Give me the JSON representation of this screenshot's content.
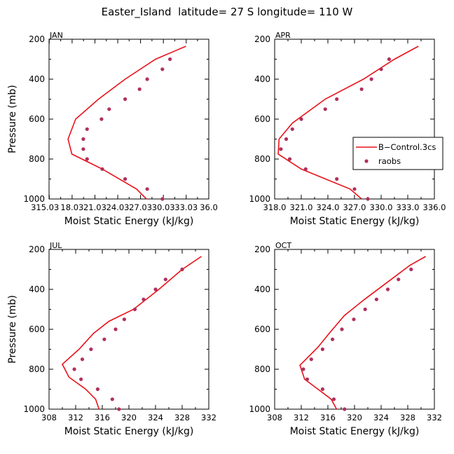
{
  "figure": {
    "title": "Easter_Island  latitude= 27 S longitude= 110 W"
  },
  "legend": {
    "model_label": "B−Control.3cs",
    "obs_label": "raobs",
    "line_color": "#e8121a",
    "dot_color": "#b03060"
  },
  "chart_data": [
    {
      "type": "line",
      "month": "JAN",
      "xlabel": "Moist Static Energy (kJ/kg)",
      "ylabel": "Pressure (mb)",
      "xlim": [
        315.0,
        336.0
      ],
      "ylim": [
        1000,
        200
      ],
      "xticks": [
        315.03,
        318.03,
        321.03,
        324.03,
        327.03,
        330.03,
        333.03,
        336.0
      ],
      "xtick_labels": [
        "315.03",
        "18.03",
        "21.03",
        "24.03",
        "27.03",
        "30.03",
        "33.03",
        "36.0"
      ],
      "yticks": [
        200,
        400,
        600,
        800,
        1000
      ],
      "legend": false,
      "series": [
        {
          "name": "B−Control.3cs",
          "kind": "line",
          "points": [
            [
              333.0,
              235
            ],
            [
              329.0,
              300
            ],
            [
              325.0,
              400
            ],
            [
              321.5,
              500
            ],
            [
              318.5,
              600
            ],
            [
              317.5,
              700
            ],
            [
              318.0,
              775
            ],
            [
              322.0,
              850
            ],
            [
              326.5,
              950
            ],
            [
              327.8,
              1000
            ]
          ]
        },
        {
          "name": "raobs",
          "kind": "scatter",
          "points": [
            [
              330.9,
              300
            ],
            [
              329.9,
              350
            ],
            [
              327.9,
              400
            ],
            [
              326.9,
              450
            ],
            [
              325.0,
              500
            ],
            [
              322.9,
              550
            ],
            [
              321.9,
              600
            ],
            [
              320.0,
              650
            ],
            [
              319.5,
              700
            ],
            [
              319.5,
              750
            ],
            [
              320.0,
              800
            ],
            [
              322.0,
              850
            ],
            [
              325.0,
              900
            ],
            [
              327.9,
              950
            ],
            [
              329.9,
              1000
            ]
          ]
        }
      ]
    },
    {
      "type": "line",
      "month": "APR",
      "xlabel": "Moist Static Energy (kJ/kg)",
      "ylabel": "Pressure (mb)",
      "xlim": [
        318.0,
        336.0
      ],
      "ylim": [
        1000,
        200
      ],
      "xticks": [
        318.0,
        321.0,
        324.0,
        327.0,
        330.0,
        333.0,
        336.0
      ],
      "xtick_labels": [
        "318.0",
        "321.0",
        "324.0",
        "327.0",
        "330.0",
        "333.0",
        "336.0"
      ],
      "yticks": [
        200,
        400,
        600,
        800,
        1000
      ],
      "legend": true,
      "series": [
        {
          "name": "B−Control.3cs",
          "kind": "line",
          "points": [
            [
              334.2,
              235
            ],
            [
              331.5,
              300
            ],
            [
              328.0,
              400
            ],
            [
              323.7,
              500
            ],
            [
              320.0,
              620
            ],
            [
              318.5,
              700
            ],
            [
              318.4,
              775
            ],
            [
              321.0,
              850
            ],
            [
              326.5,
              950
            ],
            [
              327.8,
              1000
            ]
          ]
        },
        {
          "name": "raobs",
          "kind": "scatter",
          "points": [
            [
              330.9,
              300
            ],
            [
              330.0,
              350
            ],
            [
              328.9,
              400
            ],
            [
              327.8,
              450
            ],
            [
              325.0,
              500
            ],
            [
              323.7,
              550
            ],
            [
              321.0,
              600
            ],
            [
              320.0,
              650
            ],
            [
              319.3,
              700
            ],
            [
              318.7,
              750
            ],
            [
              319.7,
              800
            ],
            [
              321.5,
              850
            ],
            [
              325.0,
              900
            ],
            [
              327.0,
              950
            ],
            [
              328.5,
              1000
            ]
          ]
        }
      ]
    },
    {
      "type": "line",
      "month": "JUL",
      "xlabel": "Moist Static Energy (kJ/kg)",
      "ylabel": "Pressure (mb)",
      "xlim": [
        308,
        332
      ],
      "ylim": [
        1000,
        200
      ],
      "xticks": [
        308,
        312,
        316,
        320,
        324,
        328,
        332
      ],
      "xtick_labels": [
        "308",
        "312",
        "316",
        "320",
        "324",
        "328",
        "332"
      ],
      "yticks": [
        200,
        400,
        600,
        800,
        1000
      ],
      "legend": false,
      "series": [
        {
          "name": "B−Control.3cs",
          "kind": "line",
          "points": [
            [
              330.9,
              235
            ],
            [
              328.0,
              300
            ],
            [
              324.5,
              400
            ],
            [
              320.7,
              500
            ],
            [
              317.0,
              560
            ],
            [
              314.7,
              620
            ],
            [
              312.5,
              700
            ],
            [
              310.0,
              775
            ],
            [
              311.0,
              840
            ],
            [
              313.5,
              900
            ],
            [
              315.0,
              950
            ],
            [
              315.5,
              1000
            ]
          ]
        },
        {
          "name": "raobs",
          "kind": "scatter",
          "points": [
            [
              328.0,
              300
            ],
            [
              325.5,
              350
            ],
            [
              324.0,
              400
            ],
            [
              322.2,
              450
            ],
            [
              320.9,
              500
            ],
            [
              319.3,
              550
            ],
            [
              318.0,
              600
            ],
            [
              316.3,
              650
            ],
            [
              314.3,
              700
            ],
            [
              313.0,
              750
            ],
            [
              311.8,
              800
            ],
            [
              312.8,
              850
            ],
            [
              315.3,
              900
            ],
            [
              317.5,
              950
            ],
            [
              318.5,
              1000
            ]
          ]
        }
      ]
    },
    {
      "type": "line",
      "month": "OCT",
      "xlabel": "Moist Static Energy (kJ/kg)",
      "ylabel": "Pressure (mb)",
      "xlim": [
        308,
        332
      ],
      "ylim": [
        1000,
        200
      ],
      "xticks": [
        308,
        312,
        316,
        320,
        324,
        328,
        332
      ],
      "xtick_labels": [
        "308",
        "312",
        "316",
        "320",
        "324",
        "328",
        "332"
      ],
      "yticks": [
        200,
        400,
        600,
        800,
        1000
      ],
      "legend": false,
      "series": [
        {
          "name": "B−Control.3cs",
          "kind": "line",
          "points": [
            [
              330.7,
              235
            ],
            [
              328.3,
              280
            ],
            [
              325.5,
              350
            ],
            [
              321.5,
              450
            ],
            [
              318.5,
              530
            ],
            [
              316.2,
              620
            ],
            [
              314.5,
              690
            ],
            [
              313.0,
              740
            ],
            [
              311.8,
              780
            ],
            [
              312.5,
              850
            ],
            [
              314.5,
              900
            ],
            [
              316.5,
              950
            ],
            [
              317.3,
              1000
            ]
          ]
        },
        {
          "name": "raobs",
          "kind": "scatter",
          "points": [
            [
              328.5,
              300
            ],
            [
              326.6,
              350
            ],
            [
              325.0,
              400
            ],
            [
              323.3,
              450
            ],
            [
              321.6,
              500
            ],
            [
              319.9,
              550
            ],
            [
              318.1,
              600
            ],
            [
              316.7,
              650
            ],
            [
              315.2,
              700
            ],
            [
              313.5,
              750
            ],
            [
              312.3,
              800
            ],
            [
              312.9,
              850
            ],
            [
              315.2,
              900
            ],
            [
              316.9,
              950
            ],
            [
              318.5,
              1000
            ]
          ]
        }
      ]
    }
  ]
}
